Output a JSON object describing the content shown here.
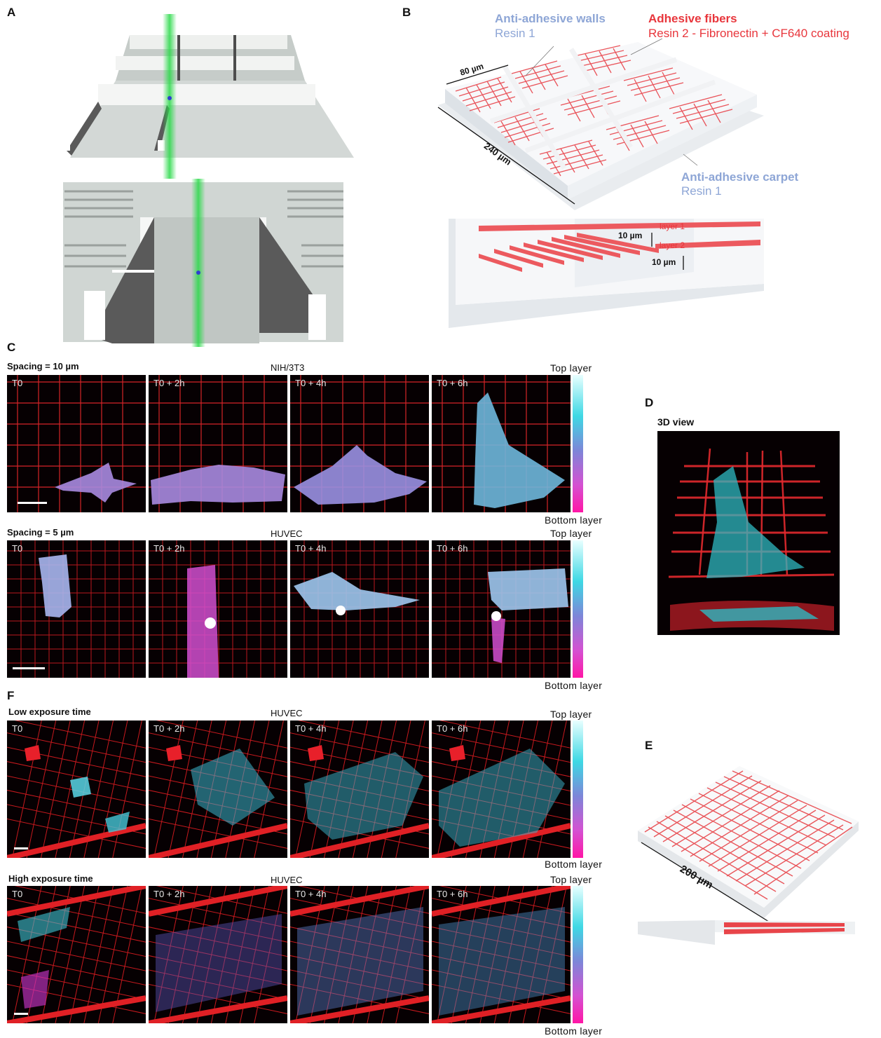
{
  "panels": {
    "a": "A",
    "b": "B",
    "c": "C",
    "d": "D",
    "e": "E",
    "f": "F"
  },
  "panel_b": {
    "walls_title": "Anti-adhesive walls",
    "walls_resin": "Resin 1",
    "fibers_title": "Adhesive fibers",
    "fibers_resin": "Resin 2 - Fibronectin + CF640 coating",
    "carpet_title": "Anti-adhesive carpet",
    "carpet_resin": "Resin 1",
    "dim_80": "80 µm",
    "dim_240": "240 µm",
    "layer1": "layer 1",
    "layer2": "layer 2",
    "gap_top": "10 µm",
    "gap_bottom": "10 µm"
  },
  "panel_c": {
    "row1_title": "Spacing = 10 µm",
    "row1_cell": "NIH/3T3",
    "row2_title": "Spacing = 5 µm",
    "row2_cell": "HUVEC",
    "times": [
      "T0",
      "T0 + 2h",
      "T0 + 4h",
      "T0 + 6h"
    ]
  },
  "panel_d": {
    "title": "3D view"
  },
  "panel_e": {
    "dim_200": "200 µm"
  },
  "panel_f": {
    "row1_title": "Low exposure time",
    "row1_cell": "HUVEC",
    "row2_title": "High exposure time",
    "row2_cell": "HUVEC",
    "times": [
      "T0",
      "T0 + 2h",
      "T0 + 4h",
      "T0 + 6h"
    ]
  },
  "colorbar": {
    "top": "Top layer",
    "bottom": "Bottom layer"
  },
  "colors": {
    "fiber_red": "#e8363c",
    "resin_blue": "#8ea6d6",
    "cyan": "#3ed8e4",
    "magenta": "#ff16a6"
  }
}
